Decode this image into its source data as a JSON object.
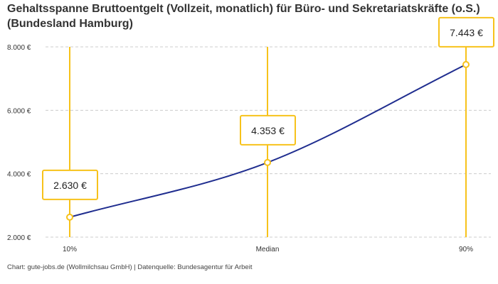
{
  "chart_data": {
    "type": "line",
    "title": "Gehaltsspanne Bruttoentgelt (Vollzeit, monatlich) für Büro- und Sekretariatskräfte (o.S.) (Bundesland Hamburg)",
    "categories": [
      "10%",
      "Median",
      "90%"
    ],
    "values": [
      2630,
      4353,
      7443
    ],
    "data_labels": [
      "2.630 €",
      "4.353 €",
      "7.443 €"
    ],
    "ylim": [
      2000,
      8000
    ],
    "yticks": [
      2000,
      4000,
      6000,
      8000
    ],
    "ytick_labels": [
      "2.000 €",
      "4.000 €",
      "6.000 €",
      "8.000 €"
    ],
    "xlabel": "",
    "ylabel": "",
    "grid": "horizontal dashed",
    "colors": {
      "line": "#1f2d8f",
      "accent": "#f7c21b",
      "grid": "#cccccc"
    }
  },
  "footer": "Chart: gute-jobs.de (Wollmilchsau GmbH) | Datenquelle: Bundesagentur für Arbeit"
}
